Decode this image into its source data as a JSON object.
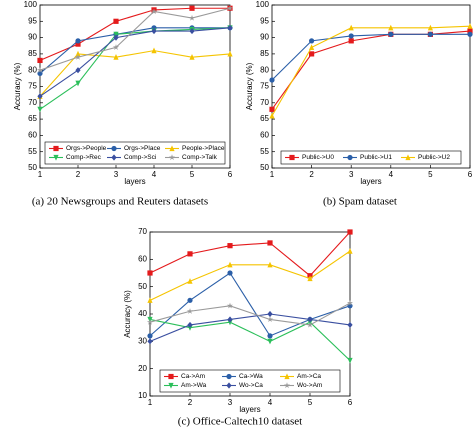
{
  "chart_data": [
    {
      "type": "line",
      "caption": "(a)  20 Newsgroups and Reuters datasets",
      "xlabel": "layers",
      "ylabel": "Accuracy (%)",
      "x": [
        1,
        2,
        3,
        4,
        5,
        6
      ],
      "xlim": [
        1,
        6
      ],
      "xticks": [
        1,
        2,
        3,
        4,
        5,
        6
      ],
      "ylim": [
        50,
        100
      ],
      "yticks": [
        50,
        55,
        60,
        65,
        70,
        75,
        80,
        85,
        90,
        95,
        100
      ],
      "legend": "lower center",
      "series": [
        {
          "name": "Orgs->People",
          "color": "#e41a1c",
          "marker": "square",
          "values": [
            83,
            88,
            95,
            98.5,
            99,
            99
          ]
        },
        {
          "name": "Orgs->Place",
          "color": "#2b5fa8",
          "marker": "circle",
          "values": [
            79,
            89,
            91,
            93,
            93,
            93
          ]
        },
        {
          "name": "People->Place",
          "color": "#f5c400",
          "marker": "triangle-up",
          "values": [
            72,
            85,
            84,
            86,
            84,
            85
          ]
        },
        {
          "name": "Comp->Rec",
          "color": "#2bbf5a",
          "marker": "triangle-down",
          "values": [
            68,
            76,
            91,
            92,
            92.5,
            93
          ]
        },
        {
          "name": "Comp->Sci",
          "color": "#3a4fa0",
          "marker": "diamond",
          "values": [
            72,
            80,
            90,
            92,
            92,
            93
          ]
        },
        {
          "name": "Comp->Talk",
          "color": "#9a9a9a",
          "marker": "star",
          "values": [
            80,
            84,
            87,
            98,
            96,
            99
          ]
        }
      ]
    },
    {
      "type": "line",
      "caption": "(b)  Spam dataset",
      "xlabel": "layers",
      "ylabel": "Accuracy (%)",
      "x": [
        1,
        2,
        3,
        4,
        5,
        6
      ],
      "xlim": [
        1,
        6
      ],
      "xticks": [
        1,
        2,
        3,
        4,
        5,
        6
      ],
      "ylim": [
        50,
        100
      ],
      "yticks": [
        50,
        55,
        60,
        65,
        70,
        75,
        80,
        85,
        90,
        95,
        100
      ],
      "legend": "lower center",
      "series": [
        {
          "name": "Public->U0",
          "color": "#e41a1c",
          "marker": "square",
          "values": [
            68,
            85,
            89,
            91,
            91,
            92
          ]
        },
        {
          "name": "Public->U1",
          "color": "#2b5fa8",
          "marker": "circle",
          "values": [
            77,
            89,
            90.5,
            91,
            91,
            91
          ]
        },
        {
          "name": "Public->U2",
          "color": "#f5c400",
          "marker": "triangle-up",
          "values": [
            66,
            87,
            93,
            93,
            93,
            93.5
          ]
        }
      ]
    },
    {
      "type": "line",
      "caption": "(c)  Office-Caltech10 dataset",
      "xlabel": "layers",
      "ylabel": "Accuracy (%)",
      "x": [
        1,
        2,
        3,
        4,
        5,
        6
      ],
      "xlim": [
        1,
        6
      ],
      "xticks": [
        1,
        2,
        3,
        4,
        5,
        6
      ],
      "ylim": [
        10,
        70
      ],
      "yticks": [
        10,
        20,
        30,
        40,
        50,
        60,
        70
      ],
      "legend": "lower center",
      "series": [
        {
          "name": "Ca->Am",
          "color": "#e41a1c",
          "marker": "square",
          "values": [
            55,
            62,
            65,
            66,
            54,
            70
          ]
        },
        {
          "name": "Ca->Wa",
          "color": "#2b5fa8",
          "marker": "circle",
          "values": [
            32,
            45,
            55,
            32,
            38,
            43
          ]
        },
        {
          "name": "Am->Ca",
          "color": "#f5c400",
          "marker": "triangle-up",
          "values": [
            45,
            52,
            58,
            58,
            53,
            63
          ]
        },
        {
          "name": "Am->Wa",
          "color": "#2bbf5a",
          "marker": "triangle-down",
          "values": [
            38,
            35,
            37,
            30,
            37,
            23
          ]
        },
        {
          "name": "Wo->Ca",
          "color": "#3a4fa0",
          "marker": "diamond",
          "values": [
            30,
            36,
            38,
            40,
            38,
            36
          ]
        },
        {
          "name": "Wo->Am",
          "color": "#9a9a9a",
          "marker": "star",
          "values": [
            37,
            41,
            43,
            38,
            36,
            44
          ]
        }
      ]
    }
  ]
}
